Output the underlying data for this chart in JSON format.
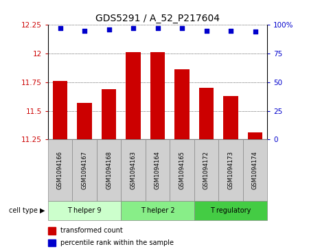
{
  "title": "GDS5291 / A_52_P217604",
  "samples": [
    "GSM1094166",
    "GSM1094167",
    "GSM1094168",
    "GSM1094163",
    "GSM1094164",
    "GSM1094165",
    "GSM1094172",
    "GSM1094173",
    "GSM1094174"
  ],
  "transformed_counts": [
    11.76,
    11.57,
    11.69,
    12.01,
    12.01,
    11.86,
    11.7,
    11.63,
    11.31
  ],
  "percentile_ranks": [
    97,
    95,
    96,
    97,
    97,
    97,
    95,
    95,
    94
  ],
  "ylim_left": [
    11.25,
    12.25
  ],
  "ylim_right": [
    0,
    100
  ],
  "yticks_left": [
    11.25,
    11.5,
    11.75,
    12.0,
    12.25
  ],
  "yticks_right": [
    0,
    25,
    50,
    75,
    100
  ],
  "ytick_labels_left": [
    "11.25",
    "11.5",
    "11.75",
    "12",
    "12.25"
  ],
  "ytick_labels_right": [
    "0",
    "25",
    "50",
    "75",
    "100%"
  ],
  "bar_color": "#cc0000",
  "dot_color": "#0000cc",
  "cell_groups": [
    {
      "label": "T helper 9",
      "indices": [
        0,
        1,
        2
      ],
      "color": "#ccffcc"
    },
    {
      "label": "T helper 2",
      "indices": [
        3,
        4,
        5
      ],
      "color": "#88ee88"
    },
    {
      "label": "T regulatory",
      "indices": [
        6,
        7,
        8
      ],
      "color": "#44cc44"
    }
  ],
  "cell_type_label": "cell type",
  "legend_bar_label": "transformed count",
  "legend_dot_label": "percentile rank within the sample",
  "title_fontsize": 10,
  "tick_fontsize": 7.5,
  "label_fontsize": 7.5,
  "sample_box_color": "#d0d0d0",
  "sample_box_edge": "#888888",
  "background_color": "#ffffff"
}
